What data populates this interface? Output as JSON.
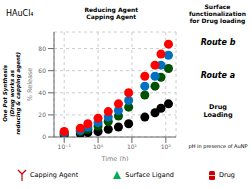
{
  "chart_data": {
    "type": "scatter",
    "x_label": "Time (h)",
    "y_label": "% Release",
    "log": "x",
    "xlim": [
      0.05,
      200
    ],
    "xticks": [
      {
        "value": 0.1,
        "label": "10⁻¹"
      },
      {
        "value": 1,
        "label": "10⁰"
      },
      {
        "value": 10,
        "label": "10¹"
      },
      {
        "value": 100,
        "label": "10²"
      }
    ],
    "ylim": [
      0,
      95
    ],
    "yticks": [
      0,
      20,
      40,
      60,
      80
    ],
    "x": [
      0.1,
      0.3,
      0.5,
      1,
      2,
      4,
      8,
      24,
      48,
      72,
      120
    ],
    "series": [
      {
        "color": "#000000",
        "values": [
          2,
          3,
          4,
          5,
          7,
          9,
          12,
          18,
          22,
          26,
          30
        ]
      },
      {
        "color": "#005000",
        "values": [
          3,
          5,
          7,
          10,
          14,
          19,
          27,
          38,
          46,
          54,
          62
        ]
      },
      {
        "color": "#0070c0",
        "values": [
          4,
          6,
          9,
          13,
          18,
          24,
          33,
          46,
          55,
          65,
          74
        ]
      },
      {
        "color": "#ff0000",
        "values": [
          5,
          8,
          12,
          17,
          23,
          30,
          40,
          55,
          65,
          75,
          84
        ]
      }
    ],
    "annotations": [
      "One Pot Synthesis\n(Drug works as\nreducing & capping agent)",
      "HAuCl₄",
      "Reducing Agent",
      "Capping Agent",
      "Surface\nfunctionalization\nfor Drug loading",
      "Route b",
      "Route a",
      "Drug\nLoading",
      "pH in presence of AuNP"
    ],
    "key_items": [
      {
        "name": "Capping Agent",
        "color": "#cc0000",
        "marker": "Y"
      },
      {
        "name": "Surface Ligand",
        "color": "#00b050",
        "marker": "triangle"
      },
      {
        "name": "Drug",
        "color": "#cc0000",
        "marker": "rect"
      }
    ]
  }
}
